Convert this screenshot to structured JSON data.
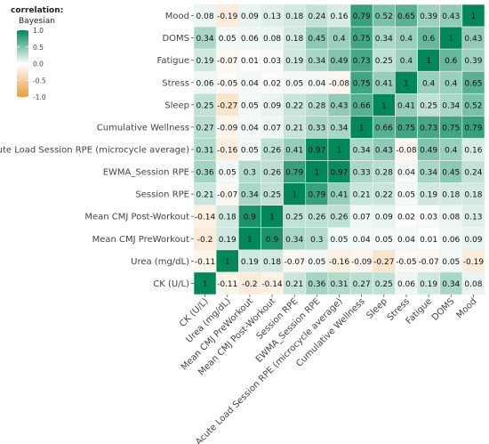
{
  "chart_data": {
    "type": "heatmap",
    "title": "",
    "variables": [
      "CK (U/L)",
      "Urea (mg/dL)",
      "Mean CMJ PreWorkout",
      "Mean CMJ Post-Workout",
      "Session RPE",
      "EWMA_Session RPE",
      "Acute Load Session RPE (microcycle average)",
      "Cumulative Wellness",
      "Sleep",
      "Stress",
      "Fatigue",
      "DOMS",
      "Mood"
    ],
    "matrix": [
      [
        1,
        -0.11,
        -0.2,
        -0.14,
        0.21,
        0.36,
        0.31,
        0.27,
        0.25,
        0.06,
        0.19,
        0.34,
        0.08
      ],
      [
        -0.11,
        1,
        0.19,
        0.18,
        -0.07,
        0.05,
        -0.16,
        -0.09,
        -0.27,
        -0.05,
        -0.07,
        0.05,
        -0.19
      ],
      [
        -0.2,
        0.19,
        1,
        0.9,
        0.34,
        0.3,
        0.05,
        0.04,
        0.05,
        0.04,
        0.01,
        0.06,
        0.09
      ],
      [
        -0.14,
        0.18,
        0.9,
        1,
        0.25,
        0.26,
        0.26,
        0.07,
        0.09,
        0.02,
        0.03,
        0.08,
        0.13
      ],
      [
        0.21,
        -0.07,
        0.34,
        0.25,
        1,
        0.79,
        0.41,
        0.21,
        0.22,
        0.05,
        0.19,
        0.18,
        0.18
      ],
      [
        0.36,
        0.05,
        0.3,
        0.26,
        0.79,
        1,
        0.97,
        0.33,
        0.28,
        0.04,
        0.34,
        0.45,
        0.24
      ],
      [
        0.31,
        -0.16,
        0.05,
        0.26,
        0.41,
        0.97,
        1,
        0.34,
        0.43,
        -0.08,
        0.49,
        0.4,
        0.16
      ],
      [
        0.27,
        -0.09,
        0.04,
        0.07,
        0.21,
        0.33,
        0.34,
        1,
        0.66,
        0.75,
        0.73,
        0.75,
        0.79
      ],
      [
        0.25,
        -0.27,
        0.05,
        0.09,
        0.22,
        0.28,
        0.43,
        0.66,
        1,
        0.41,
        0.25,
        0.34,
        0.52
      ],
      [
        0.06,
        -0.05,
        0.04,
        0.02,
        0.05,
        0.04,
        -0.08,
        0.75,
        0.41,
        1,
        0.4,
        0.4,
        0.65
      ],
      [
        0.19,
        -0.07,
        0.01,
        0.03,
        0.19,
        0.34,
        0.49,
        0.73,
        0.25,
        0.4,
        1,
        0.6,
        0.39
      ],
      [
        0.34,
        0.05,
        0.06,
        0.08,
        0.18,
        0.45,
        0.4,
        0.75,
        0.34,
        0.4,
        0.6,
        1,
        0.43
      ],
      [
        0.08,
        -0.19,
        0.09,
        0.13,
        0.18,
        0.24,
        0.16,
        0.79,
        0.52,
        0.65,
        0.39,
        0.43,
        1
      ]
    ],
    "legend": {
      "title_line1": "correlation:",
      "title_line2": "Bayesian",
      "ticks": [
        1.0,
        0.5,
        0.0,
        -0.5,
        -1.0
      ],
      "tick_labels": [
        "1.0",
        "0.5",
        "0.0",
        "-0.5",
        "-1.0"
      ],
      "placement": "top-left"
    },
    "color_scale": {
      "positive": "#00875a",
      "zero": "#ffffff",
      "negative": "#e8a03a"
    },
    "range": [
      -1,
      1
    ],
    "grid": true
  }
}
